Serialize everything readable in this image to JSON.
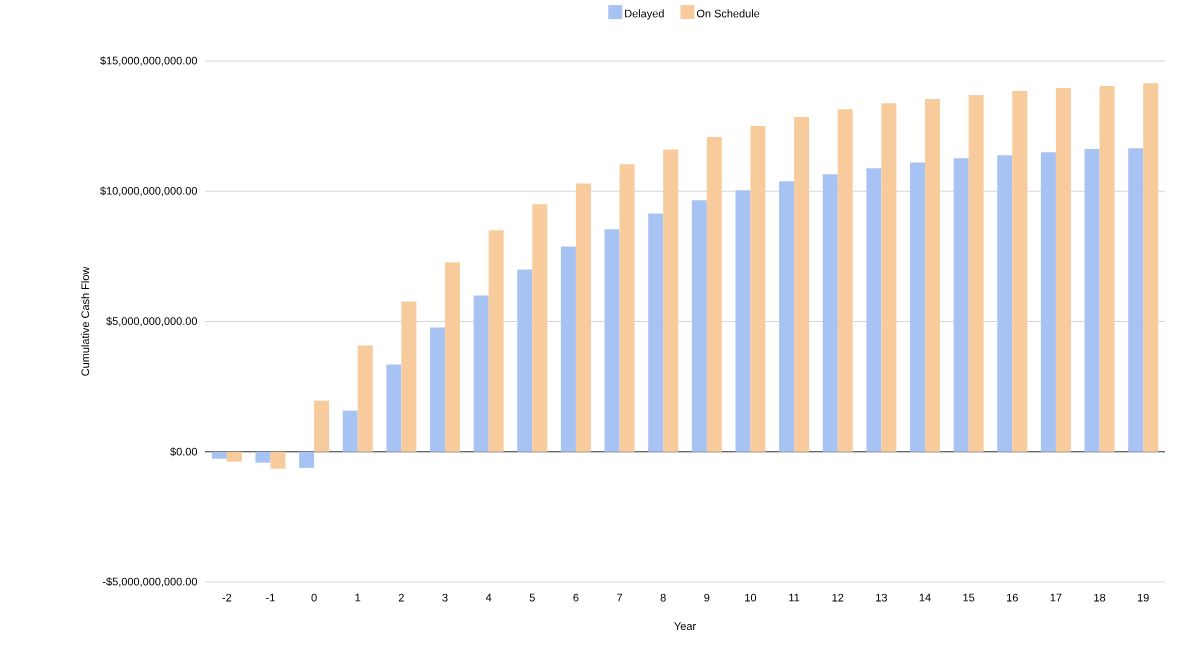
{
  "chart_data": {
    "type": "bar",
    "xlabel": "Year",
    "ylabel": "Cumulative Cash Flow",
    "categories": [
      "-2",
      "-1",
      "0",
      "1",
      "2",
      "3",
      "4",
      "5",
      "6",
      "7",
      "8",
      "9",
      "10",
      "11",
      "12",
      "13",
      "14",
      "15",
      "16",
      "17",
      "18",
      "19"
    ],
    "series": [
      {
        "name": "Delayed",
        "color": "#a7c3f4",
        "values": [
          -270000000,
          -420000000,
          -620000000,
          1580000000,
          3350000000,
          4770000000,
          6000000000,
          7000000000,
          7880000000,
          8540000000,
          9150000000,
          9650000000,
          10040000000,
          10380000000,
          10650000000,
          10880000000,
          11100000000,
          11270000000,
          11380000000,
          11500000000,
          11620000000,
          11650000000
        ]
      },
      {
        "name": "On Schedule",
        "color": "#f8cb9d",
        "values": [
          -380000000,
          -650000000,
          1960000000,
          4080000000,
          5770000000,
          7270000000,
          8500000000,
          9500000000,
          10300000000,
          11040000000,
          11600000000,
          12080000000,
          12500000000,
          12850000000,
          13150000000,
          13380000000,
          13540000000,
          13690000000,
          13850000000,
          13960000000,
          14040000000,
          14150000000
        ]
      }
    ],
    "ylim": [
      -5000000000,
      15000000000
    ],
    "yticks": [
      {
        "value": -5000000000,
        "label": "-$5,000,000,000.00"
      },
      {
        "value": 0,
        "label": "$0.00"
      },
      {
        "value": 5000000000,
        "label": "$5,000,000,000.00"
      },
      {
        "value": 10000000000,
        "label": "$10,000,000,000.00"
      },
      {
        "value": 15000000000,
        "label": "$15,000,000,000.00"
      }
    ],
    "grid": "y",
    "legend": "top"
  }
}
